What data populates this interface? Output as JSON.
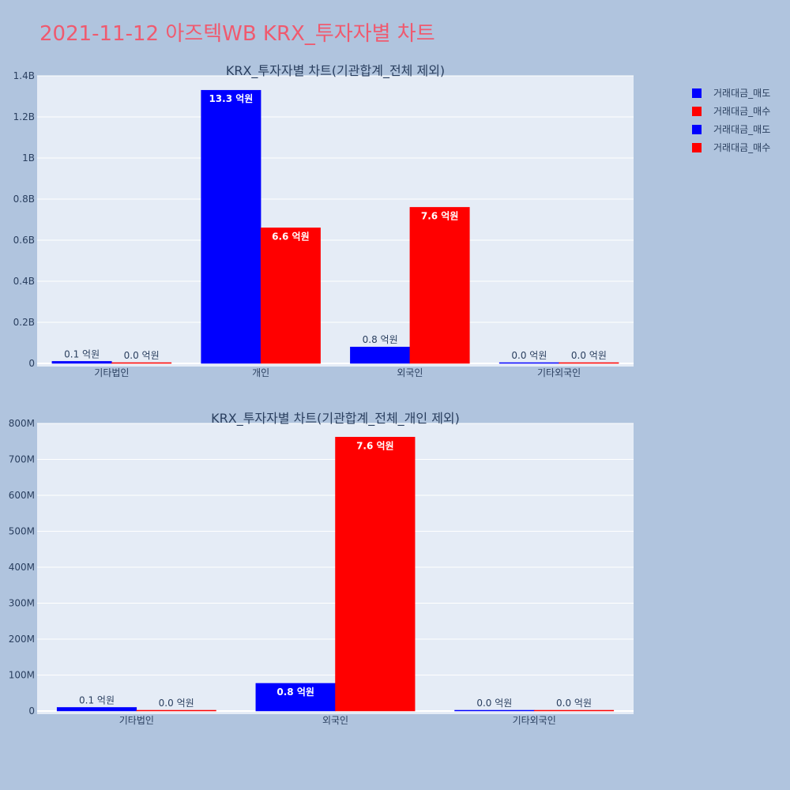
{
  "title": "2021-11-12 아즈텍WB KRX_투자자별 차트",
  "legend": [
    {
      "label": "거래대금_매도",
      "color": "#0000ff"
    },
    {
      "label": "거래대금_매수",
      "color": "#ff0000"
    },
    {
      "label": "거래대금_매도",
      "color": "#0000ff"
    },
    {
      "label": "거래대금_매수",
      "color": "#ff0000"
    }
  ],
  "chart_data": [
    {
      "type": "bar",
      "title": "KRX_투자자별 차트(기관합계_전체 제외)",
      "categories": [
        "기타법인",
        "개인",
        "외국인",
        "기타외국인"
      ],
      "series": [
        {
          "name": "거래대금_매도",
          "color": "#0000ff",
          "values": [
            10000000,
            1330000000,
            80000000,
            2000000
          ],
          "labels": [
            "0.1 억원",
            "13.3 억원",
            "0.8 억원",
            "0.0 억원"
          ]
        },
        {
          "name": "거래대금_매수",
          "color": "#ff0000",
          "values": [
            2000000,
            660000000,
            760000000,
            2000000
          ],
          "labels": [
            "0.0 억원",
            "6.6 억원",
            "7.6 억원",
            "0.0 억원"
          ]
        }
      ],
      "ylim": [
        0,
        1400000000
      ],
      "yticks": [
        0,
        200000000,
        400000000,
        600000000,
        800000000,
        1000000000,
        1200000000,
        1400000000
      ],
      "yticklabels": [
        "0",
        "0.2B",
        "0.4B",
        "0.6B",
        "0.8B",
        "1B",
        "1.2B",
        "1.4B"
      ],
      "grid": true
    },
    {
      "type": "bar",
      "title": "KRX_투자자별 차트(기관합계_전체_개인 제외)",
      "categories": [
        "기타법인",
        "외국인",
        "기타외국인"
      ],
      "series": [
        {
          "name": "거래대금_매도",
          "color": "#0000ff",
          "values": [
            10000000,
            77000000,
            2000000
          ],
          "labels": [
            "0.1 억원",
            "0.8 억원",
            "0.0 억원"
          ]
        },
        {
          "name": "거래대금_매수",
          "color": "#ff0000",
          "values": [
            2000000,
            762000000,
            2000000
          ],
          "labels": [
            "0.0 억원",
            "7.6 억원",
            "0.0 억원"
          ]
        }
      ],
      "ylim": [
        0,
        800000000
      ],
      "yticks": [
        0,
        100000000,
        200000000,
        300000000,
        400000000,
        500000000,
        600000000,
        700000000,
        800000000
      ],
      "yticklabels": [
        "0",
        "100M",
        "200M",
        "300M",
        "400M",
        "500M",
        "600M",
        "700M",
        "800M"
      ],
      "grid": true
    }
  ]
}
